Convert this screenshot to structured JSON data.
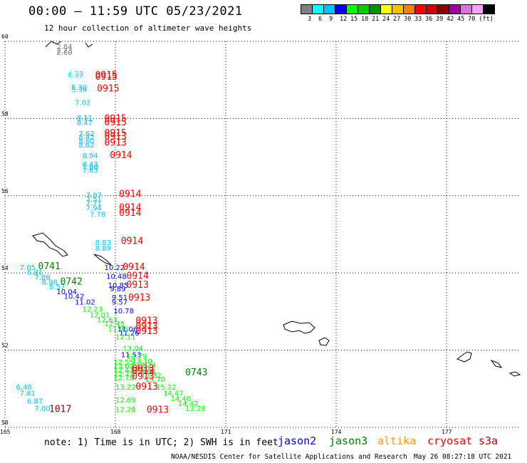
{
  "header": {
    "title": "00:00 – 11:59 UTC 05/23/2021",
    "subtitle": "12 hour collection of altimeter wave heights"
  },
  "legend": {
    "colors": [
      "#7f7f7f",
      "#00ffff",
      "#00bfff",
      "#0000ff",
      "#00ff00",
      "#00d000",
      "#009000",
      "#ffff00",
      "#ffc000",
      "#ff8000",
      "#ff0000",
      "#d00000",
      "#900000",
      "#a000a0",
      "#e070e0",
      "#ffa0ff",
      "#000000"
    ],
    "labels": [
      "3",
      "6",
      "9",
      "12",
      "15",
      "18",
      "21",
      "24",
      "27",
      "30",
      "33",
      "36",
      "39",
      "42",
      "45",
      "70 (ft)"
    ]
  },
  "map": {
    "lat_labels": [
      "60",
      "58",
      "56",
      "54",
      "52",
      "50"
    ],
    "lon_labels": [
      "165",
      "168",
      "171",
      "174",
      "177"
    ],
    "lat_range": [
      50,
      60
    ],
    "lon_range": [
      165,
      179
    ],
    "grid": "dotted",
    "points": [
      {
        "t": "2.84",
        "lon": 166.4,
        "lat": 59.8,
        "c": "#7f7f7f"
      },
      {
        "t": "2.73",
        "lon": 166.4,
        "lat": 59.7,
        "c": "#7f7f7f"
      },
      {
        "t": "2.60",
        "lon": 166.4,
        "lat": 59.65,
        "c": "#7f7f7f"
      },
      {
        "t": "4.33",
        "lon": 166.7,
        "lat": 59.1,
        "c": "#00ffff"
      },
      {
        "t": "4.37",
        "lon": 166.7,
        "lat": 59.05,
        "c": "#00ffff"
      },
      {
        "t": "5.30",
        "lon": 166.8,
        "lat": 58.75,
        "c": "#00bfff"
      },
      {
        "t": "5.39",
        "lon": 166.8,
        "lat": 58.68,
        "c": "#00bfff"
      },
      {
        "t": "7.02",
        "lon": 166.9,
        "lat": 58.35,
        "c": "#00bfff"
      },
      {
        "t": "8.11",
        "lon": 166.95,
        "lat": 57.95,
        "c": "#00bfff"
      },
      {
        "t": "8.47",
        "lon": 166.95,
        "lat": 57.82,
        "c": "#00bfff"
      },
      {
        "t": "7.62",
        "lon": 167.0,
        "lat": 57.55,
        "c": "#00bfff"
      },
      {
        "t": "8.42",
        "lon": 167.0,
        "lat": 57.45,
        "c": "#00bfff"
      },
      {
        "t": "8.60",
        "lon": 167.0,
        "lat": 57.35,
        "c": "#00bfff"
      },
      {
        "t": "8.62",
        "lon": 167.0,
        "lat": 57.25,
        "c": "#00bfff"
      },
      {
        "t": "8.94",
        "lon": 167.1,
        "lat": 56.97,
        "c": "#00bfff"
      },
      {
        "t": "8.43",
        "lon": 167.1,
        "lat": 56.75,
        "c": "#00bfff"
      },
      {
        "t": "7.80",
        "lon": 167.1,
        "lat": 56.68,
        "c": "#00bfff"
      },
      {
        "t": "7.63",
        "lon": 167.1,
        "lat": 56.6,
        "c": "#00bfff"
      },
      {
        "t": "7.87",
        "lon": 167.2,
        "lat": 55.95,
        "c": "#00bfff"
      },
      {
        "t": "7.51",
        "lon": 167.2,
        "lat": 55.85,
        "c": "#00bfff"
      },
      {
        "t": "7.71",
        "lon": 167.2,
        "lat": 55.75,
        "c": "#00bfff"
      },
      {
        "t": "7.94",
        "lon": 167.2,
        "lat": 55.62,
        "c": "#00bfff"
      },
      {
        "t": "7.78",
        "lon": 167.3,
        "lat": 55.45,
        "c": "#00bfff"
      },
      {
        "t": "8.83",
        "lon": 167.45,
        "lat": 54.72,
        "c": "#00bfff"
      },
      {
        "t": "8.89",
        "lon": 167.45,
        "lat": 54.58,
        "c": "#00bfff"
      },
      {
        "t": "10.22",
        "lon": 167.7,
        "lat": 54.08,
        "c": "#0000ff"
      },
      {
        "t": "10.48",
        "lon": 167.75,
        "lat": 53.85,
        "c": "#0000ff"
      },
      {
        "t": "10.85",
        "lon": 167.8,
        "lat": 53.62,
        "c": "#0000ff"
      },
      {
        "t": "9.89",
        "lon": 167.85,
        "lat": 53.52,
        "c": "#0000ff"
      },
      {
        "t": "9.51",
        "lon": 167.9,
        "lat": 53.3,
        "c": "#0000ff"
      },
      {
        "t": "9.57",
        "lon": 167.9,
        "lat": 53.18,
        "c": "#0000ff"
      },
      {
        "t": "10.78",
        "lon": 167.95,
        "lat": 52.95,
        "c": "#0000ff"
      },
      {
        "t": "11.06",
        "lon": 168.05,
        "lat": 52.48,
        "c": "#0000ff"
      },
      {
        "t": "11.26",
        "lon": 168.1,
        "lat": 52.38,
        "c": "#0000ff"
      },
      {
        "t": "11.53",
        "lon": 168.15,
        "lat": 51.82,
        "c": "#0000ff"
      },
      {
        "t": "7.05",
        "lon": 165.4,
        "lat": 54.08,
        "c": "#00bfff"
      },
      {
        "t": "6.81",
        "lon": 165.6,
        "lat": 53.95,
        "c": "#00bfff"
      },
      {
        "t": "7.88",
        "lon": 165.8,
        "lat": 53.82,
        "c": "#00bfff"
      },
      {
        "t": "8.98",
        "lon": 166.0,
        "lat": 53.7,
        "c": "#00bfff"
      },
      {
        "t": "8.57",
        "lon": 166.2,
        "lat": 53.58,
        "c": "#00bfff"
      },
      {
        "t": "10.04",
        "lon": 166.4,
        "lat": 53.45,
        "c": "#0000ff"
      },
      {
        "t": "10.42",
        "lon": 166.6,
        "lat": 53.33,
        "c": "#0000ff"
      },
      {
        "t": "11.02",
        "lon": 166.9,
        "lat": 53.18,
        "c": "#0000ff"
      },
      {
        "t": "12.23",
        "lon": 167.1,
        "lat": 53.0,
        "c": "#00ff00"
      },
      {
        "t": "12.01",
        "lon": 167.3,
        "lat": 52.85,
        "c": "#00ff00"
      },
      {
        "t": "12.63",
        "lon": 167.5,
        "lat": 52.72,
        "c": "#00ff00"
      },
      {
        "t": "12.45",
        "lon": 167.7,
        "lat": 52.62,
        "c": "#00ff00"
      },
      {
        "t": "11.95",
        "lon": 167.8,
        "lat": 52.48,
        "c": "#00ff00"
      },
      {
        "t": "12.11",
        "lon": 168.0,
        "lat": 52.28,
        "c": "#00ff00"
      },
      {
        "t": "13.04",
        "lon": 168.2,
        "lat": 51.98,
        "c": "#00ff00"
      },
      {
        "t": "12.79",
        "lon": 168.3,
        "lat": 51.78,
        "c": "#00ff00"
      },
      {
        "t": "13.10",
        "lon": 168.45,
        "lat": 51.65,
        "c": "#00ff00"
      },
      {
        "t": "13.23",
        "lon": 168.55,
        "lat": 51.55,
        "c": "#00ff00"
      },
      {
        "t": "13.02",
        "lon": 168.4,
        "lat": 51.45,
        "c": "#00ff00"
      },
      {
        "t": "13.04",
        "lon": 168.55,
        "lat": 51.38,
        "c": "#00ff00"
      },
      {
        "t": "13.32",
        "lon": 168.7,
        "lat": 51.28,
        "c": "#00ff00"
      },
      {
        "t": "13.70",
        "lon": 168.8,
        "lat": 51.18,
        "c": "#00ff00"
      },
      {
        "t": "15.12",
        "lon": 169.1,
        "lat": 50.98,
        "c": "#00ff00"
      },
      {
        "t": "14.47",
        "lon": 169.3,
        "lat": 50.82,
        "c": "#00ff00"
      },
      {
        "t": "14.46",
        "lon": 169.5,
        "lat": 50.68,
        "c": "#00ff00"
      },
      {
        "t": "14.42",
        "lon": 169.7,
        "lat": 50.55,
        "c": "#00ff00"
      },
      {
        "t": "13.28",
        "lon": 169.9,
        "lat": 50.42,
        "c": "#00ff00"
      },
      {
        "t": "12.55",
        "lon": 167.95,
        "lat": 51.62,
        "c": "#00ff00"
      },
      {
        "t": "13.02",
        "lon": 167.95,
        "lat": 51.52,
        "c": "#00ff00"
      },
      {
        "t": "12.41",
        "lon": 167.95,
        "lat": 51.42,
        "c": "#00ff00"
      },
      {
        "t": "12.71",
        "lon": 167.95,
        "lat": 51.32,
        "c": "#00ff00"
      },
      {
        "t": "12.78",
        "lon": 167.95,
        "lat": 51.22,
        "c": "#00ff00"
      },
      {
        "t": "13.22",
        "lon": 168.0,
        "lat": 50.98,
        "c": "#00ff00"
      },
      {
        "t": "12.69",
        "lon": 168.0,
        "lat": 50.65,
        "c": "#00ff00"
      },
      {
        "t": "12.28",
        "lon": 168.0,
        "lat": 50.4,
        "c": "#00ff00"
      },
      {
        "t": "6.48",
        "lon": 165.3,
        "lat": 50.98,
        "c": "#00bfff"
      },
      {
        "t": "7.81",
        "lon": 165.4,
        "lat": 50.82,
        "c": "#00bfff"
      },
      {
        "t": "6.87",
        "lon": 165.6,
        "lat": 50.62,
        "c": "#00bfff"
      },
      {
        "t": "7.00",
        "lon": 165.8,
        "lat": 50.42,
        "c": "#00bfff"
      }
    ],
    "passes": [
      {
        "t": "0915",
        "lon": 167.45,
        "lat": 59.05,
        "c": "#ff0000"
      },
      {
        "t": "0915",
        "lon": 167.45,
        "lat": 59.0,
        "c": "#ff0000"
      },
      {
        "t": "0915",
        "lon": 167.5,
        "lat": 58.7,
        "c": "#ff0000"
      },
      {
        "t": "0915",
        "lon": 167.7,
        "lat": 57.92,
        "c": "#ff0000"
      },
      {
        "t": "0915",
        "lon": 167.7,
        "lat": 57.82,
        "c": "#ff0000"
      },
      {
        "t": "0915",
        "lon": 167.7,
        "lat": 57.55,
        "c": "#ff0000"
      },
      {
        "t": "0913",
        "lon": 167.7,
        "lat": 57.45,
        "c": "#ff0000"
      },
      {
        "t": "0913",
        "lon": 167.7,
        "lat": 57.3,
        "c": "#ff0000"
      },
      {
        "t": "0914",
        "lon": 167.85,
        "lat": 56.97,
        "c": "#ff0000"
      },
      {
        "t": "0914",
        "lon": 168.1,
        "lat": 55.97,
        "c": "#ff0000"
      },
      {
        "t": "0914",
        "lon": 168.1,
        "lat": 55.62,
        "c": "#ff0000"
      },
      {
        "t": "0914",
        "lon": 168.1,
        "lat": 55.48,
        "c": "#ff0000"
      },
      {
        "t": "0914",
        "lon": 168.15,
        "lat": 54.75,
        "c": "#ff0000"
      },
      {
        "t": "0914",
        "lon": 168.2,
        "lat": 54.08,
        "c": "#ff0000"
      },
      {
        "t": "0914",
        "lon": 168.3,
        "lat": 53.85,
        "c": "#ff0000"
      },
      {
        "t": "0913",
        "lon": 168.3,
        "lat": 53.62,
        "c": "#ff0000"
      },
      {
        "t": "0913",
        "lon": 168.35,
        "lat": 53.28,
        "c": "#ff0000"
      },
      {
        "t": "0913",
        "lon": 168.55,
        "lat": 52.68,
        "c": "#ff0000"
      },
      {
        "t": "0913",
        "lon": 168.55,
        "lat": 52.55,
        "c": "#ff0000"
      },
      {
        "t": "0913",
        "lon": 168.55,
        "lat": 52.42,
        "c": "#ff0000"
      },
      {
        "t": "0913",
        "lon": 168.45,
        "lat": 51.45,
        "c": "#ff0000"
      },
      {
        "t": "0913",
        "lon": 168.45,
        "lat": 51.38,
        "c": "#ff0000"
      },
      {
        "t": "0913",
        "lon": 168.45,
        "lat": 51.25,
        "c": "#ff0000"
      },
      {
        "t": "0913",
        "lon": 168.55,
        "lat": 50.98,
        "c": "#ff0000"
      },
      {
        "t": "0913",
        "lon": 168.85,
        "lat": 50.38,
        "c": "#ff0000"
      },
      {
        "t": "0741",
        "lon": 165.9,
        "lat": 54.1,
        "c": "#008000"
      },
      {
        "t": "0742",
        "lon": 166.5,
        "lat": 53.7,
        "c": "#008000"
      },
      {
        "t": "0743",
        "lon": 169.9,
        "lat": 51.35,
        "c": "#008000"
      },
      {
        "t": "1017",
        "lon": 166.2,
        "lat": 50.4,
        "c": "#900000"
      }
    ]
  },
  "footer": {
    "note": "note:  1) Time is in UTC;  2) SWH is in feet",
    "satellites": [
      {
        "name": "jason2",
        "color": "#0000ff"
      },
      {
        "name": "jason3",
        "color": "#008000"
      },
      {
        "name": "altika",
        "color": "#ff9900"
      },
      {
        "name": "cryosat",
        "color": "#ff0000"
      },
      {
        "name": "s3a",
        "color": "#b00000"
      }
    ],
    "credit": "NOAA/NESDIS Center for Satellite Applications and Research",
    "timestamp": "May 26 08:27:18 UTC 2021"
  }
}
